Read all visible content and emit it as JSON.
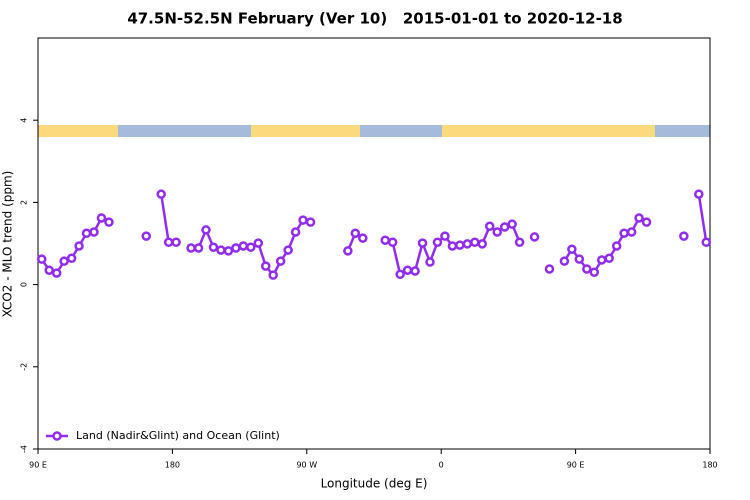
{
  "chart_data": {
    "type": "line",
    "title": "47.5N-52.5N February (Ver 10)   2015-01-01 to 2020-12-18",
    "xlabel": "Longitude (deg E)",
    "ylabel": "XCO2 - MLO trend (ppm)",
    "xlim": [
      90,
      540
    ],
    "ylim": [
      -4,
      6
    ],
    "xticks": [
      {
        "value": 90,
        "label": "90 E"
      },
      {
        "value": 180,
        "label": "180"
      },
      {
        "value": 270,
        "label": "90 W"
      },
      {
        "value": 360,
        "label": "0"
      },
      {
        "value": 450,
        "label": "90 E"
      },
      {
        "value": 540,
        "label": "180"
      }
    ],
    "yticks": [
      -4,
      -2,
      0,
      2,
      4
    ],
    "legend": "bottom-left",
    "x": [
      92.5,
      97.5,
      102.5,
      107.5,
      112.5,
      117.5,
      122.5,
      127.5,
      132.5,
      137.5,
      142.5,
      147.5,
      152.5,
      157.5,
      162.5,
      167.5,
      172.5,
      177.5,
      182.5,
      187.5,
      192.5,
      197.5,
      202.5,
      207.5,
      212.5,
      217.5,
      222.5,
      227.5,
      232.5,
      237.5,
      242.5,
      247.5,
      252.5,
      257.5,
      262.5,
      267.5,
      272.5,
      277.5,
      282.5,
      287.5,
      292.5,
      297.5,
      302.5,
      307.5,
      312.5,
      317.5,
      322.5,
      327.5,
      332.5,
      337.5,
      342.5,
      347.5,
      352.5,
      357.5,
      362.5,
      367.5,
      372.5,
      377.5,
      382.5,
      387.5,
      392.5,
      397.5,
      402.5,
      407.5,
      412.5,
      417.5,
      422.5,
      427.5,
      432.5,
      437.5,
      442.5,
      447.5,
      452.5,
      457.5,
      462.5,
      467.5,
      472.5,
      477.5,
      482.5,
      487.5,
      492.5,
      497.5,
      502.5,
      507.5,
      512.5,
      517.5,
      522.5,
      527.5,
      532.5,
      537.5
    ],
    "series": [
      {
        "name": "Land (Nadir&Glint) and Ocean (Glint)",
        "color": "#912cee",
        "values": [
          0.62,
          0.35,
          0.28,
          0.57,
          0.64,
          0.94,
          1.25,
          1.28,
          1.62,
          1.52,
          null,
          null,
          null,
          null,
          1.18,
          null,
          2.2,
          1.03,
          1.03,
          null,
          0.89,
          0.89,
          1.33,
          0.91,
          0.84,
          0.82,
          0.89,
          0.94,
          0.91,
          1.01,
          0.45,
          0.23,
          0.57,
          0.84,
          1.28,
          1.57,
          1.52,
          null,
          null,
          null,
          null,
          0.82,
          1.25,
          1.13,
          null,
          null,
          1.08,
          1.03,
          0.25,
          0.35,
          0.33,
          1.01,
          0.55,
          1.03,
          1.18,
          0.94,
          0.96,
          0.99,
          1.03,
          0.99,
          1.42,
          1.28,
          1.4,
          1.47,
          1.03,
          null,
          1.16,
          null,
          0.38,
          null,
          0.57,
          0.86,
          0.62,
          0.38,
          0.3,
          0.6,
          0.64,
          0.94,
          1.25,
          1.28,
          1.62,
          1.52,
          null,
          null,
          null,
          null,
          1.18,
          null,
          2.2,
          1.03
        ]
      }
    ]
  }
}
